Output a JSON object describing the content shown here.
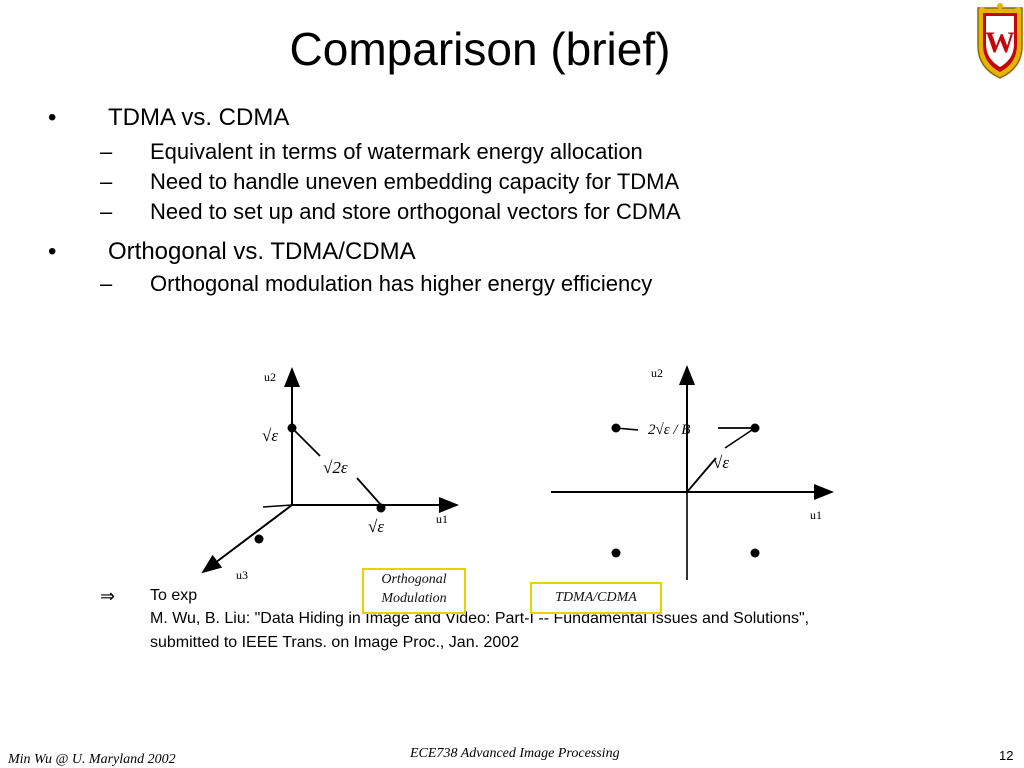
{
  "slide": {
    "title": "Comparison (brief)",
    "bullets": [
      {
        "mark": "•",
        "text": "TDMA vs. CDMA",
        "subs": [
          {
            "mark": "–",
            "text": "Equivalent in terms of watermark energy allocation"
          },
          {
            "mark": "–",
            "text": "Need to handle uneven embedding capacity for TDMA"
          },
          {
            "mark": "–",
            "text": "Need to set up and store orthogonal vectors for CDMA"
          }
        ]
      },
      {
        "mark": "•",
        "text": "Orthogonal vs. TDMA/CDMA",
        "subs": [
          {
            "mark": "–",
            "text": "Orthogonal modulation has higher energy efficiency"
          }
        ]
      }
    ],
    "reference": {
      "arrow": "⇒",
      "lead": "To exp",
      "line1": "M. Wu, B. Liu: \"Data Hiding in Image and Video: Part-I -- Fundamental Issues and Solutions\",",
      "line2": "submitted to IEEE Trans. on Image Proc., Jan. 2002"
    }
  },
  "diagrams": {
    "left": {
      "axis_u1": "u1",
      "axis_u2": "u2",
      "axis_u3": "u3",
      "point_label": "√ε",
      "distance_label": "√2ε",
      "caption_line1": "Orthogonal",
      "caption_line2": "Modulation"
    },
    "right": {
      "axis_u1": "u1",
      "axis_u2": "u2",
      "amplitude_label": "2√ε / B",
      "norm_label": "√ε",
      "caption": "TDMA/CDMA"
    },
    "caption_border_color": "#e8d200"
  },
  "footer": {
    "author": "Min Wu @ U. Maryland 2002",
    "course": "ECE738 Advanced Image Processing",
    "page": "12"
  },
  "logo": {
    "icon": "uw-crest-icon",
    "letter": "W",
    "colors": {
      "shield": "#c5050c",
      "border": "#e8b400"
    }
  }
}
